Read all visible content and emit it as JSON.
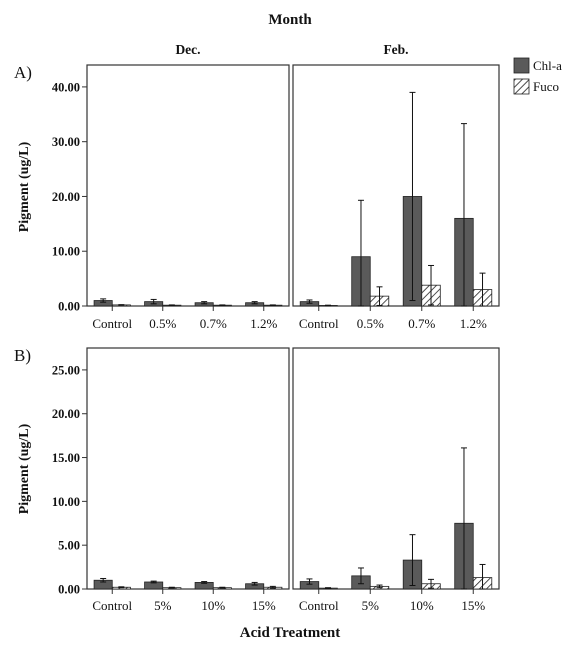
{
  "figure": {
    "top_title": "Month",
    "x_title": "Acid Treatment",
    "legend": [
      {
        "label": "Chl-a",
        "pattern": "solid",
        "color": "#5a5a5a"
      },
      {
        "label": "Fuco",
        "pattern": "hatch",
        "color": "#ffffff"
      }
    ],
    "colors": {
      "chla": "#5a5a5a",
      "fuco_hatch": "#222222",
      "axis": "#333333"
    }
  },
  "chart_data": [
    {
      "panel_label": "A)",
      "type": "bar",
      "ylabel": "Pigment (ug/L)",
      "ylim": [
        0,
        44
      ],
      "yticks": [
        "0.00",
        "10.00",
        "20.00",
        "30.00",
        "40.00"
      ],
      "ytick_values": [
        0,
        10,
        20,
        30,
        40
      ],
      "facets": [
        {
          "title": "Dec.",
          "categories": [
            "Control",
            "0.5%",
            "0.7%",
            "1.2%"
          ],
          "series": [
            {
              "name": "Chl-a",
              "values": [
                1.0,
                0.8,
                0.6,
                0.6
              ],
              "err": [
                0.3,
                0.4,
                0.2,
                0.2
              ]
            },
            {
              "name": "Fuco",
              "values": [
                0.2,
                0.15,
                0.15,
                0.15
              ],
              "err": [
                0.05,
                0.05,
                0.05,
                0.05
              ]
            }
          ]
        },
        {
          "title": "Feb.",
          "categories": [
            "Control",
            "0.5%",
            "0.7%",
            "1.2%"
          ],
          "series": [
            {
              "name": "Chl-a",
              "values": [
                0.8,
                9.0,
                20.0,
                16.0
              ],
              "err": [
                0.3,
                10.3,
                19.0,
                17.3
              ]
            },
            {
              "name": "Fuco",
              "values": [
                0.1,
                1.8,
                3.8,
                3.0
              ],
              "err": [
                0.05,
                1.7,
                3.6,
                3.0
              ]
            }
          ]
        }
      ]
    },
    {
      "panel_label": "B)",
      "type": "bar",
      "ylabel": "Pigment (ug/L)",
      "ylim": [
        0,
        27.5
      ],
      "yticks": [
        "0.00",
        "5.00",
        "10.00",
        "15.00",
        "20.00",
        "25.00"
      ],
      "ytick_values": [
        0,
        5,
        10,
        15,
        20,
        25
      ],
      "facets": [
        {
          "title": "",
          "categories": [
            "Control",
            "5%",
            "10%",
            "15%"
          ],
          "series": [
            {
              "name": "Chl-a",
              "values": [
                1.0,
                0.8,
                0.75,
                0.6
              ],
              "err": [
                0.2,
                0.1,
                0.1,
                0.15
              ]
            },
            {
              "name": "Fuco",
              "values": [
                0.2,
                0.15,
                0.15,
                0.2
              ],
              "err": [
                0.05,
                0.05,
                0.05,
                0.1
              ]
            }
          ]
        },
        {
          "title": "",
          "categories": [
            "Control",
            "5%",
            "10%",
            "15%"
          ],
          "series": [
            {
              "name": "Chl-a",
              "values": [
                0.85,
                1.5,
                3.3,
                7.5
              ],
              "err": [
                0.3,
                0.9,
                2.9,
                8.6
              ]
            },
            {
              "name": "Fuco",
              "values": [
                0.1,
                0.3,
                0.6,
                1.3
              ],
              "err": [
                0.05,
                0.15,
                0.5,
                1.5
              ]
            }
          ]
        }
      ]
    }
  ]
}
